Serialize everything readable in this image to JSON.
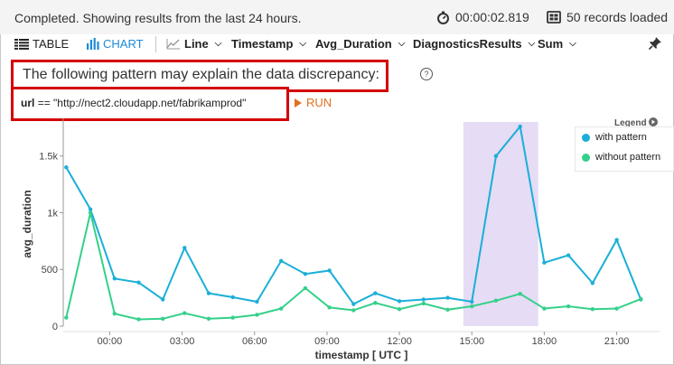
{
  "status": {
    "message": "Completed. Showing results from the last 24 hours.",
    "elapsed": "00:00:02.819",
    "records": "50 records loaded"
  },
  "toolbar": {
    "table_label": "TABLE",
    "chart_label": "CHART",
    "chart_type": "Line",
    "x_column": "Timestamp",
    "y_column": "Avg_Duration",
    "split_by": "DiagnosticsResults",
    "aggregation": "Sum"
  },
  "pattern": {
    "heading": "The following pattern may explain the data discrepancy:",
    "query_field": "url",
    "query_op": "==",
    "query_value": "\"http://nect2.cloudapp.net/fabrikamprod\"",
    "run_label": "RUN"
  },
  "legend": {
    "title": "Legend",
    "items": [
      "with pattern",
      "without pattern"
    ]
  },
  "colors": {
    "with_pattern": "#1aafd8",
    "without_pattern": "#34d08a",
    "highlight": "#e6dcf5",
    "accent": "#1f8ad6",
    "run": "#e07020",
    "alert_border": "#d40000"
  },
  "chart_data": {
    "type": "line",
    "xlabel": "timestamp [ UTC ]",
    "ylabel": "avg_duration",
    "x_tick_labels": [
      "00:00",
      "03:00",
      "06:00",
      "09:00",
      "12:00",
      "15:00",
      "18:00",
      "21:00"
    ],
    "x_tick_hours": [
      0,
      3,
      6,
      9,
      12,
      15,
      18,
      21
    ],
    "y_tick_labels": [
      "0",
      "500",
      "1k",
      "1.5k"
    ],
    "y_tick_values": [
      0,
      500,
      1000,
      1500
    ],
    "xlim_hours": [
      -1.85,
      22.7
    ],
    "ylim": [
      0,
      1800
    ],
    "highlight_hours": [
      14.65,
      17.75
    ],
    "x_hours": [
      -1.8,
      -0.8,
      0.2,
      1.2,
      2.2,
      3.1,
      4.1,
      5.1,
      6.1,
      7.1,
      8.1,
      9.1,
      10.1,
      11.0,
      12.0,
      13.0,
      14.0,
      15.0,
      16.0,
      17.0,
      18.0,
      19.0,
      20.0,
      21.0,
      22.0
    ],
    "series": [
      {
        "name": "with pattern",
        "values": [
          1400,
          1030,
          420,
          385,
          235,
          690,
          290,
          255,
          215,
          575,
          460,
          490,
          195,
          290,
          220,
          235,
          250,
          215,
          1500,
          1760,
          560,
          625,
          380,
          760,
          235
        ]
      },
      {
        "name": "without pattern",
        "values": [
          75,
          1000,
          110,
          60,
          65,
          115,
          65,
          75,
          100,
          155,
          335,
          165,
          140,
          205,
          150,
          200,
          145,
          175,
          225,
          285,
          155,
          175,
          150,
          155,
          240
        ]
      }
    ]
  }
}
